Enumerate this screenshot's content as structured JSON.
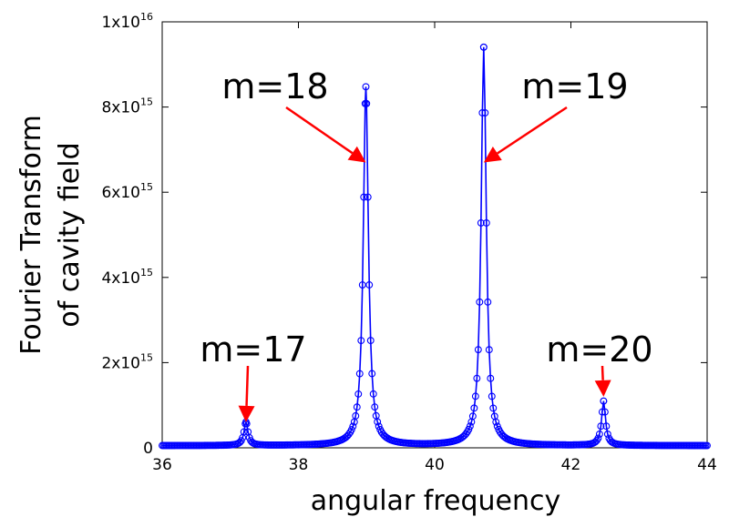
{
  "chart_data": {
    "type": "line",
    "xlabel": "angular frequency",
    "ylabel_lines": [
      "Fourier Transform",
      "of cavity field"
    ],
    "xlim": [
      36,
      44
    ],
    "ylim": [
      0,
      1e+16
    ],
    "x_ticks": [
      {
        "value": 36,
        "label": "36"
      },
      {
        "value": 38,
        "label": "38"
      },
      {
        "value": 40,
        "label": "40"
      },
      {
        "value": 42,
        "label": "42"
      },
      {
        "value": 44,
        "label": "44"
      }
    ],
    "y_ticks": [
      {
        "value": 0,
        "label": "0",
        "mantissa": "0",
        "exp": ""
      },
      {
        "value": 2000000000000000.0,
        "label": "2x10^15",
        "mantissa": "2x10",
        "exp": "15"
      },
      {
        "value": 4000000000000000.0,
        "label": "4x10^15",
        "mantissa": "4x10",
        "exp": "15"
      },
      {
        "value": 6000000000000000.0,
        "label": "6x10^15",
        "mantissa": "6x10",
        "exp": "15"
      },
      {
        "value": 8000000000000000.0,
        "label": "8x10^15",
        "mantissa": "8x10",
        "exp": "15"
      },
      {
        "value": 1e+16,
        "label": "1x10^16",
        "mantissa": "1x10",
        "exp": "16"
      }
    ],
    "grid": false,
    "series_color": "#0000ff",
    "marker": "open-circle",
    "baseline": 50000000000000.0,
    "peaks": [
      {
        "x": 37.23,
        "height": 550000000000000.0,
        "width": 0.035
      },
      {
        "x": 38.99,
        "height": 8420000000000000.0,
        "width": 0.045
      },
      {
        "x": 40.72,
        "height": 9350000000000000.0,
        "width": 0.045
      },
      {
        "x": 42.48,
        "height": 1040000000000000.0,
        "width": 0.035
      }
    ],
    "x_step": 0.02,
    "annotations": [
      {
        "text": "m=17",
        "arrow_target": [
          37.23,
          600000000000000.0
        ]
      },
      {
        "text": "m=18",
        "arrow_target": [
          38.99,
          6700000000000000.0
        ]
      },
      {
        "text": "m=19",
        "arrow_target": [
          40.72,
          6700000000000000.0
        ]
      },
      {
        "text": "m=20",
        "arrow_target": [
          42.48,
          1200000000000000.0
        ]
      }
    ],
    "annotation_color": "#ff0000"
  }
}
